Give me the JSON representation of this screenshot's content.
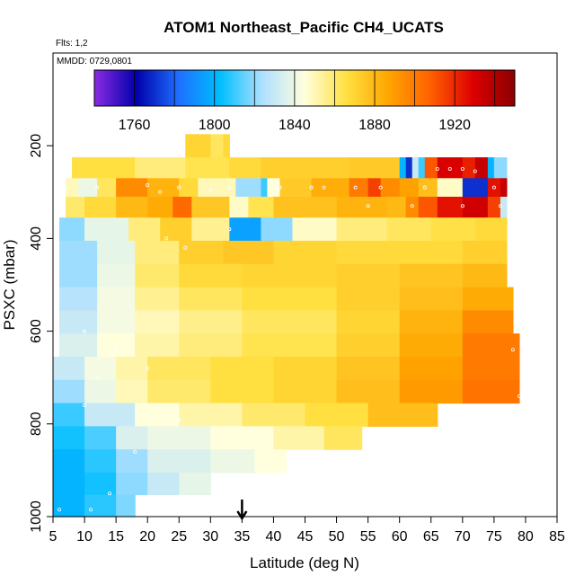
{
  "chart_data": {
    "type": "heatmap",
    "title": "ATOM1 Northeast_Pacific CH4_UCATS",
    "flights_note": "Flts: 1,2",
    "date_note": "MMDD: 0729,0801",
    "xlabel": "Latitude (deg N)",
    "ylabel": "PSXC (mbar)",
    "xlim": [
      5,
      85
    ],
    "ylim": [
      1000,
      0
    ],
    "x_ticks": [
      5,
      10,
      15,
      20,
      25,
      30,
      35,
      40,
      45,
      50,
      55,
      60,
      65,
      70,
      75,
      80,
      85
    ],
    "y_ticks": [
      200,
      400,
      600,
      800,
      1000
    ],
    "colorbar": {
      "min": 1740,
      "max": 1950,
      "ticks": [
        1760,
        1800,
        1840,
        1880,
        1920
      ],
      "colors": [
        "#8a2be2",
        "#0000aa",
        "#1e6fff",
        "#00bfff",
        "#b0e0ff",
        "#ffffdd",
        "#ffe040",
        "#ffa500",
        "#ff6000",
        "#dd0000",
        "#8b0000"
      ]
    },
    "marker_arrow_latitude": 35,
    "grid": false,
    "layers": [
      {
        "p": 200,
        "segments": [
          [
            26,
            30,
            1870
          ],
          [
            30,
            32,
            1862
          ],
          [
            32,
            33,
            1868
          ]
        ]
      },
      {
        "p": 250,
        "segments": [
          [
            8,
            18,
            1866
          ],
          [
            18,
            26,
            1858
          ],
          [
            26,
            33,
            1864
          ],
          [
            33,
            38,
            1868
          ],
          [
            38,
            52,
            1872
          ],
          [
            52,
            60,
            1874
          ],
          [
            60,
            61,
            1800
          ],
          [
            61,
            62,
            1770
          ],
          [
            62,
            63,
            1830
          ],
          [
            63,
            64,
            1810
          ],
          [
            64,
            66,
            1910
          ],
          [
            66,
            70,
            1930
          ],
          [
            70,
            72,
            1922
          ],
          [
            72,
            74,
            1935
          ],
          [
            74,
            75,
            1800
          ],
          [
            75,
            77,
            1820
          ]
        ]
      },
      {
        "p": 290,
        "segments": [
          [
            7,
            9,
            1850
          ],
          [
            9,
            12,
            1840
          ],
          [
            12,
            15,
            1862
          ],
          [
            15,
            20,
            1895
          ],
          [
            20,
            25,
            1882
          ],
          [
            25,
            28,
            1868
          ],
          [
            28,
            34,
            1850
          ],
          [
            34,
            38,
            1822
          ],
          [
            38,
            39,
            1810
          ],
          [
            39,
            41,
            1845
          ],
          [
            41,
            46,
            1874
          ],
          [
            46,
            52,
            1884
          ],
          [
            52,
            55,
            1900
          ],
          [
            55,
            57,
            1915
          ],
          [
            57,
            60,
            1895
          ],
          [
            60,
            63,
            1888
          ],
          [
            63,
            66,
            1878
          ],
          [
            66,
            70,
            1848
          ],
          [
            70,
            74,
            1770
          ],
          [
            74,
            76,
            1925
          ],
          [
            76,
            77,
            1935
          ]
        ]
      },
      {
        "p": 330,
        "segments": [
          [
            7,
            10,
            1860
          ],
          [
            10,
            15,
            1868
          ],
          [
            15,
            20,
            1880
          ],
          [
            20,
            24,
            1885
          ],
          [
            24,
            27,
            1905
          ],
          [
            27,
            33,
            1875
          ],
          [
            33,
            36,
            1848
          ],
          [
            36,
            40,
            1864
          ],
          [
            40,
            50,
            1877
          ],
          [
            50,
            58,
            1882
          ],
          [
            58,
            61,
            1880
          ],
          [
            61,
            63,
            1895
          ],
          [
            63,
            66,
            1910
          ],
          [
            66,
            70,
            1925
          ],
          [
            70,
            74,
            1932
          ],
          [
            74,
            76,
            1915
          ],
          [
            76,
            77,
            1830
          ]
        ]
      },
      {
        "p": 380,
        "segments": [
          [
            6,
            10,
            1820
          ],
          [
            10,
            17,
            1838
          ],
          [
            17,
            22,
            1858
          ],
          [
            22,
            27,
            1872
          ],
          [
            27,
            33,
            1855
          ],
          [
            33,
            38,
            1795
          ],
          [
            38,
            43,
            1820
          ],
          [
            43,
            50,
            1848
          ],
          [
            50,
            58,
            1858
          ],
          [
            58,
            65,
            1862
          ],
          [
            65,
            72,
            1865
          ],
          [
            72,
            77,
            1868
          ]
        ]
      },
      {
        "p": 430,
        "segments": [
          [
            6,
            12,
            1822
          ],
          [
            12,
            18,
            1838
          ],
          [
            18,
            25,
            1858
          ],
          [
            25,
            32,
            1872
          ],
          [
            32,
            40,
            1875
          ],
          [
            40,
            50,
            1870
          ],
          [
            50,
            60,
            1868
          ],
          [
            60,
            70,
            1868
          ],
          [
            70,
            77,
            1872
          ]
        ]
      },
      {
        "p": 480,
        "segments": [
          [
            6,
            12,
            1822
          ],
          [
            12,
            18,
            1840
          ],
          [
            18,
            25,
            1860
          ],
          [
            25,
            35,
            1868
          ],
          [
            35,
            50,
            1870
          ],
          [
            50,
            60,
            1872
          ],
          [
            60,
            70,
            1876
          ],
          [
            70,
            77,
            1880
          ]
        ]
      },
      {
        "p": 530,
        "segments": [
          [
            6,
            12,
            1826
          ],
          [
            12,
            18,
            1842
          ],
          [
            18,
            25,
            1855
          ],
          [
            25,
            35,
            1862
          ],
          [
            35,
            50,
            1866
          ],
          [
            50,
            60,
            1872
          ],
          [
            60,
            70,
            1878
          ],
          [
            70,
            78,
            1885
          ]
        ]
      },
      {
        "p": 580,
        "segments": [
          [
            6,
            12,
            1830
          ],
          [
            12,
            18,
            1842
          ],
          [
            18,
            25,
            1850
          ],
          [
            25,
            35,
            1856
          ],
          [
            35,
            50,
            1862
          ],
          [
            50,
            60,
            1870
          ],
          [
            60,
            70,
            1882
          ],
          [
            70,
            78,
            1895
          ]
        ]
      },
      {
        "p": 630,
        "segments": [
          [
            6,
            12,
            1835
          ],
          [
            12,
            18,
            1845
          ],
          [
            18,
            25,
            1852
          ],
          [
            25,
            35,
            1858
          ],
          [
            35,
            50,
            1864
          ],
          [
            50,
            60,
            1872
          ],
          [
            60,
            70,
            1885
          ],
          [
            70,
            79,
            1900
          ]
        ]
      },
      {
        "p": 680,
        "segments": [
          [
            5,
            10,
            1830
          ],
          [
            10,
            15,
            1842
          ],
          [
            15,
            20,
            1852
          ],
          [
            20,
            30,
            1862
          ],
          [
            30,
            40,
            1866
          ],
          [
            40,
            50,
            1870
          ],
          [
            50,
            60,
            1876
          ],
          [
            60,
            70,
            1888
          ],
          [
            70,
            79,
            1900
          ]
        ]
      },
      {
        "p": 730,
        "segments": [
          [
            5,
            10,
            1822
          ],
          [
            10,
            15,
            1840
          ],
          [
            15,
            20,
            1850
          ],
          [
            20,
            30,
            1860
          ],
          [
            30,
            40,
            1866
          ],
          [
            40,
            50,
            1870
          ],
          [
            50,
            60,
            1878
          ],
          [
            60,
            70,
            1890
          ],
          [
            70,
            79,
            1902
          ]
        ]
      },
      {
        "p": 780,
        "segments": [
          [
            5,
            10,
            1810
          ],
          [
            10,
            18,
            1830
          ],
          [
            18,
            25,
            1845
          ],
          [
            25,
            35,
            1852
          ],
          [
            35,
            45,
            1860
          ],
          [
            45,
            55,
            1866
          ],
          [
            55,
            66,
            1878
          ]
        ]
      },
      {
        "p": 830,
        "segments": [
          [
            5,
            10,
            1805
          ],
          [
            10,
            15,
            1812
          ],
          [
            15,
            20,
            1835
          ],
          [
            20,
            30,
            1840
          ],
          [
            30,
            40,
            1845
          ],
          [
            40,
            48,
            1852
          ],
          [
            48,
            54,
            1862
          ]
        ]
      },
      {
        "p": 880,
        "segments": [
          [
            5,
            10,
            1800
          ],
          [
            10,
            15,
            1808
          ],
          [
            15,
            20,
            1822
          ],
          [
            20,
            30,
            1835
          ],
          [
            30,
            37,
            1840
          ],
          [
            37,
            42,
            1845
          ]
        ]
      },
      {
        "p": 930,
        "segments": [
          [
            5,
            10,
            1800
          ],
          [
            10,
            15,
            1805
          ],
          [
            15,
            20,
            1820
          ],
          [
            20,
            25,
            1830
          ],
          [
            25,
            30,
            1838
          ]
        ]
      },
      {
        "p": 975,
        "segments": [
          [
            5,
            10,
            1800
          ],
          [
            10,
            15,
            1808
          ],
          [
            15,
            18,
            1818
          ]
        ]
      }
    ],
    "samples": [
      [
        7,
        290
      ],
      [
        12,
        290
      ],
      [
        20,
        285
      ],
      [
        22,
        300
      ],
      [
        25,
        290
      ],
      [
        30,
        295
      ],
      [
        33,
        290
      ],
      [
        41,
        290
      ],
      [
        46,
        290
      ],
      [
        48,
        290
      ],
      [
        53,
        290
      ],
      [
        57,
        290
      ],
      [
        64,
        290
      ],
      [
        66,
        250
      ],
      [
        68,
        250
      ],
      [
        70,
        250
      ],
      [
        72,
        255
      ],
      [
        75,
        290
      ],
      [
        76,
        330
      ],
      [
        70,
        330
      ],
      [
        62,
        330
      ],
      [
        55,
        330
      ],
      [
        33,
        380
      ],
      [
        23,
        400
      ],
      [
        26,
        420
      ],
      [
        10,
        600
      ],
      [
        15,
        640
      ],
      [
        20,
        680
      ],
      [
        12,
        700
      ],
      [
        10,
        760
      ],
      [
        25,
        790
      ],
      [
        18,
        860
      ],
      [
        14,
        950
      ],
      [
        6,
        985
      ],
      [
        11,
        985
      ],
      [
        78,
        640
      ],
      [
        79,
        740
      ]
    ]
  }
}
